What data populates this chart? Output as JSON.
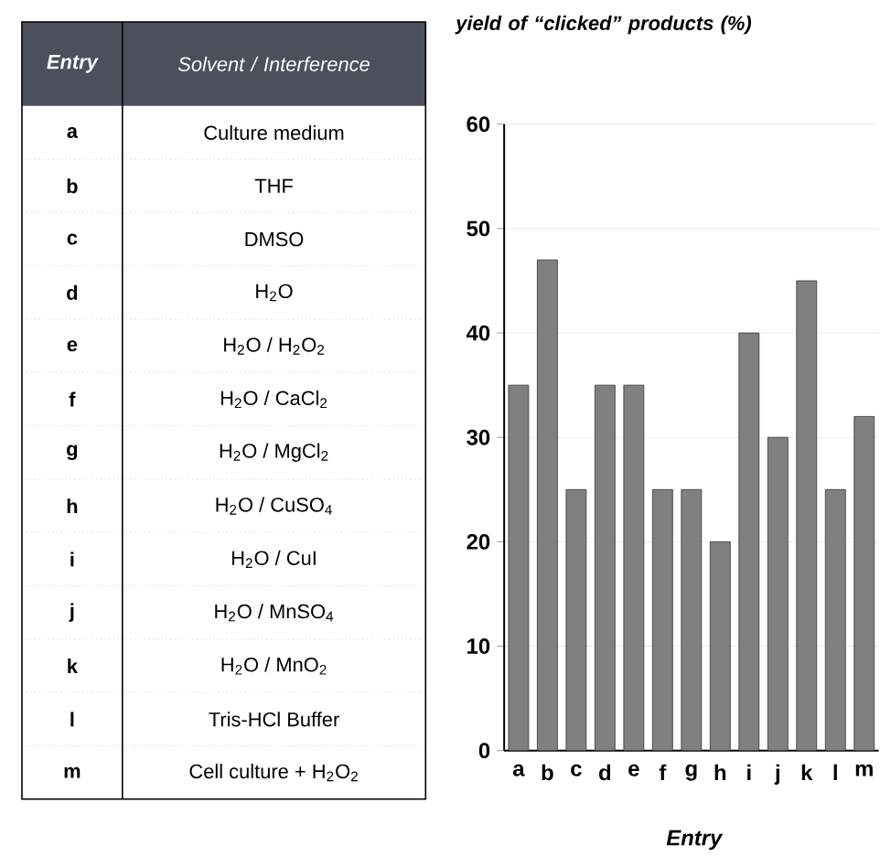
{
  "chart_data": {
    "type": "bar",
    "ylabel": "yield of “clicked” products (%)",
    "xlabel": "Entry",
    "categories": [
      "a",
      "b",
      "c",
      "d",
      "e",
      "f",
      "g",
      "h",
      "i",
      "j",
      "k",
      "l",
      "m"
    ],
    "values": [
      35,
      47,
      25,
      35,
      35,
      25,
      25,
      20,
      40,
      30,
      45,
      25,
      32
    ],
    "color": "#808080",
    "ylim": [
      0,
      60
    ],
    "yticks": [
      0,
      10,
      20,
      30,
      40,
      50,
      60
    ],
    "grid": "y",
    "annotations": [
      "Entry",
      "Solvent / Interference",
      "Culture medium",
      "THF",
      "DMSO",
      "H$_{2}$O",
      "H$_{2}$O / H$_{2}$O$_{2}$",
      "H$_{2}$O / CaCl$_{2}$",
      "H$_{2}$O / MgCl$_{2}$",
      "H$_{2}$O / CuSO$_{4}$",
      "H$_{2}$O / CuI",
      "H$_{2}$O / MnSO$_{4}$",
      "H$_{2}$O / MnO$_{2}$",
      "Tris-HCl Buffer",
      "Cell culture + H$_{2}$O$_{2}$"
    ]
  }
}
